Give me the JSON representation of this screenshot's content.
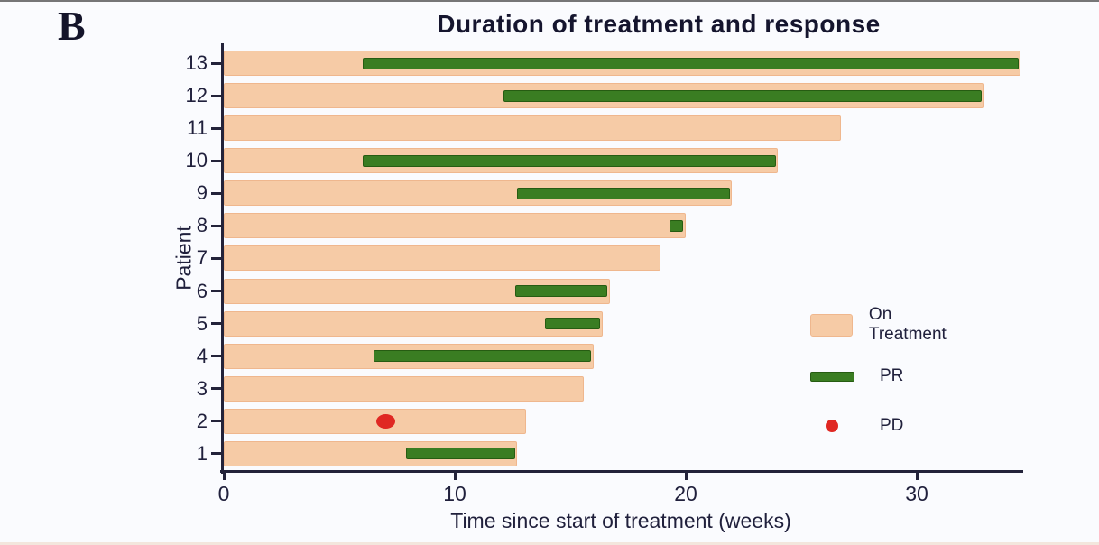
{
  "figure": {
    "panel_label": "B"
  },
  "chart_data": {
    "type": "bar",
    "subtype": "swimmer-plot",
    "orientation": "horizontal",
    "title": "Duration of treatment and response",
    "xlabel": "Time since start of treatment (weeks)",
    "ylabel": "Patient",
    "xlim": [
      0,
      34.7
    ],
    "xticks": [
      0,
      10,
      20,
      30
    ],
    "grid": false,
    "legend_position": "right-middle",
    "patients": [
      {
        "id": 13,
        "on_treatment_weeks": 34.5,
        "pr_start": 6.0,
        "pr_end": 34.4,
        "pd_week": null
      },
      {
        "id": 12,
        "on_treatment_weeks": 32.9,
        "pr_start": 12.1,
        "pr_end": 32.8,
        "pd_week": null
      },
      {
        "id": 11,
        "on_treatment_weeks": 26.7,
        "pr_start": null,
        "pr_end": null,
        "pd_week": null
      },
      {
        "id": 10,
        "on_treatment_weeks": 24.0,
        "pr_start": 6.0,
        "pr_end": 23.9,
        "pd_week": null
      },
      {
        "id": 9,
        "on_treatment_weeks": 22.0,
        "pr_start": 12.7,
        "pr_end": 21.9,
        "pd_week": null
      },
      {
        "id": 8,
        "on_treatment_weeks": 20.0,
        "pr_start": 19.3,
        "pr_end": 19.9,
        "pd_week": null
      },
      {
        "id": 7,
        "on_treatment_weeks": 18.9,
        "pr_start": null,
        "pr_end": null,
        "pd_week": null
      },
      {
        "id": 6,
        "on_treatment_weeks": 16.7,
        "pr_start": 12.6,
        "pr_end": 16.6,
        "pd_week": null
      },
      {
        "id": 5,
        "on_treatment_weeks": 16.4,
        "pr_start": 13.9,
        "pr_end": 16.3,
        "pd_week": null
      },
      {
        "id": 4,
        "on_treatment_weeks": 16.0,
        "pr_start": 6.5,
        "pr_end": 15.9,
        "pd_week": null
      },
      {
        "id": 3,
        "on_treatment_weeks": 15.6,
        "pr_start": null,
        "pr_end": null,
        "pd_week": null
      },
      {
        "id": 2,
        "on_treatment_weeks": 13.1,
        "pr_start": null,
        "pr_end": null,
        "pd_week": 7.0
      },
      {
        "id": 1,
        "on_treatment_weeks": 12.7,
        "pr_start": 7.9,
        "pr_end": 12.6,
        "pd_week": null
      }
    ],
    "colors": {
      "on_treatment": "#f6cba6",
      "on_treatment_border": "#efb78e",
      "pr": "#3a7d22",
      "pr_border": "#265c12",
      "pd": "#e02823",
      "axis": "#23233a",
      "text": "#20203c",
      "background": "#fafbfe"
    },
    "legend": [
      {
        "label": "On Treatment",
        "swatch": "box"
      },
      {
        "label": "PR",
        "swatch": "bar"
      },
      {
        "label": "PD",
        "swatch": "dot"
      }
    ]
  }
}
